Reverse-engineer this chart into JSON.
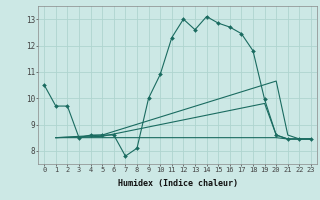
{
  "xlabel": "Humidex (Indice chaleur)",
  "bg_color": "#cce8e5",
  "line_color": "#1a6b60",
  "grid_color": "#afd4cf",
  "xlim": [
    -0.5,
    23.5
  ],
  "ylim": [
    7.5,
    13.5
  ],
  "xticks": [
    0,
    1,
    2,
    3,
    4,
    5,
    6,
    7,
    8,
    9,
    10,
    11,
    12,
    13,
    14,
    15,
    16,
    17,
    18,
    19,
    20,
    21,
    22,
    23
  ],
  "yticks": [
    8,
    9,
    10,
    11,
    12,
    13
  ],
  "series": [
    {
      "x": [
        0,
        1,
        2,
        3,
        4,
        5,
        6,
        7,
        8,
        9,
        10,
        11,
        12,
        13,
        14,
        15,
        16,
        17,
        18,
        19,
        20,
        21,
        22,
        23
      ],
      "y": [
        10.5,
        9.7,
        9.7,
        8.5,
        8.6,
        8.6,
        8.6,
        7.8,
        8.1,
        10.0,
        10.9,
        12.3,
        13.0,
        12.6,
        13.1,
        12.85,
        12.7,
        12.45,
        11.8,
        9.95,
        8.6,
        8.45,
        8.45,
        8.45
      ],
      "marker": true
    },
    {
      "x": [
        1,
        5,
        20,
        21,
        22,
        23
      ],
      "y": [
        8.5,
        8.6,
        10.65,
        8.6,
        8.45,
        8.45
      ],
      "marker": false
    },
    {
      "x": [
        1,
        5,
        19,
        20,
        21,
        22,
        23
      ],
      "y": [
        8.5,
        8.55,
        9.8,
        8.6,
        8.45,
        8.45,
        8.45
      ],
      "marker": false
    },
    {
      "x": [
        1,
        2,
        3,
        4,
        5,
        6,
        7,
        8,
        9,
        10,
        11,
        12,
        13,
        14,
        15,
        16,
        17,
        18,
        19,
        20,
        21,
        22,
        23
      ],
      "y": [
        8.5,
        8.5,
        8.5,
        8.5,
        8.5,
        8.5,
        8.5,
        8.5,
        8.5,
        8.5,
        8.5,
        8.5,
        8.5,
        8.5,
        8.5,
        8.5,
        8.5,
        8.5,
        8.5,
        8.5,
        8.45,
        8.45,
        8.45
      ],
      "marker": false
    }
  ]
}
